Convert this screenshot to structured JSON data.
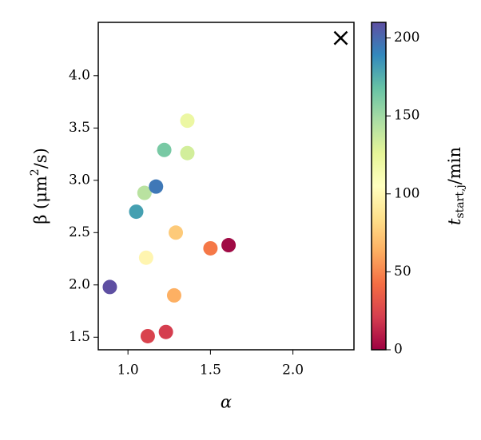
{
  "chart_data": {
    "type": "scatter",
    "x_label": "α",
    "y_label": {
      "main": "β (μm",
      "sup": "2",
      "rest": "/s)"
    },
    "xlim": [
      0.82,
      2.37
    ],
    "xticks": [
      {
        "value": 1,
        "label": "1.0"
      },
      1.5,
      {
        "value": 2,
        "label": "2.0"
      }
    ],
    "ylim": [
      1.38,
      4.51
    ],
    "yticks": [
      1.5,
      {
        "value": 2,
        "label": "2.0"
      },
      2.5,
      {
        "value": 3,
        "label": "3.0"
      },
      3.5,
      {
        "value": 4,
        "label": "4.0"
      }
    ],
    "series": [
      {
        "marker": "circle",
        "x": [
          0.89,
          1.12,
          1.23,
          1.28,
          1.11,
          1.29,
          1.05,
          1.1,
          1.17,
          1.22,
          1.36,
          1.36,
          1.5,
          1.61
        ],
        "values": [
          1.98,
          1.51,
          1.55,
          1.9,
          2.26,
          2.5,
          2.7,
          2.88,
          2.94,
          3.29,
          3.26,
          3.57,
          2.35,
          2.38
        ],
        "colors": [
          "#5e4fa2",
          "#d9434e",
          "#d53e4f",
          "#fdb063",
          "#fff5b0",
          "#fdca79",
          "#45a0b1",
          "#b9e2a0",
          "#3f78b7",
          "#78c9a4",
          "#d2ee9b",
          "#ecf7a3",
          "#f57847",
          "#a00b45"
        ]
      },
      {
        "marker": "x",
        "x": [
          2.29
        ],
        "values": [
          4.36
        ],
        "colors": [
          "#000000"
        ]
      }
    ],
    "colorbar": {
      "label": {
        "main": "t",
        "sub": "start,j",
        "rest": "/min"
      },
      "lim": [
        0,
        210
      ],
      "ticks": [
        0,
        50,
        100,
        150,
        200
      ],
      "colormap": [
        "#9e0142",
        "#d53e4f",
        "#f46d43",
        "#fdae61",
        "#fee08b",
        "#ffffbf",
        "#e6f598",
        "#abdda4",
        "#66c2a5",
        "#3288bd",
        "#5e4fa2"
      ]
    }
  }
}
